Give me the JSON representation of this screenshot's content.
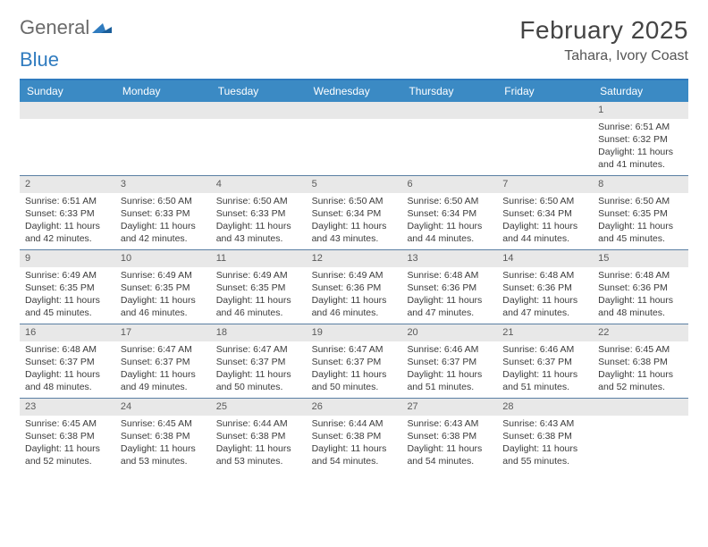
{
  "logo": {
    "word1": "General",
    "word2": "Blue"
  },
  "header": {
    "month_title": "February 2025",
    "location": "Tahara, Ivory Coast"
  },
  "calendar": {
    "columns": [
      "Sunday",
      "Monday",
      "Tuesday",
      "Wednesday",
      "Thursday",
      "Friday",
      "Saturday"
    ],
    "rows": [
      [
        {
          "empty": true
        },
        {
          "empty": true
        },
        {
          "empty": true
        },
        {
          "empty": true
        },
        {
          "empty": true
        },
        {
          "empty": true
        },
        {
          "day": "1",
          "sunrise": "Sunrise: 6:51 AM",
          "sunset": "Sunset: 6:32 PM",
          "daylight": "Daylight: 11 hours and 41 minutes."
        }
      ],
      [
        {
          "day": "2",
          "sunrise": "Sunrise: 6:51 AM",
          "sunset": "Sunset: 6:33 PM",
          "daylight": "Daylight: 11 hours and 42 minutes."
        },
        {
          "day": "3",
          "sunrise": "Sunrise: 6:50 AM",
          "sunset": "Sunset: 6:33 PM",
          "daylight": "Daylight: 11 hours and 42 minutes."
        },
        {
          "day": "4",
          "sunrise": "Sunrise: 6:50 AM",
          "sunset": "Sunset: 6:33 PM",
          "daylight": "Daylight: 11 hours and 43 minutes."
        },
        {
          "day": "5",
          "sunrise": "Sunrise: 6:50 AM",
          "sunset": "Sunset: 6:34 PM",
          "daylight": "Daylight: 11 hours and 43 minutes."
        },
        {
          "day": "6",
          "sunrise": "Sunrise: 6:50 AM",
          "sunset": "Sunset: 6:34 PM",
          "daylight": "Daylight: 11 hours and 44 minutes."
        },
        {
          "day": "7",
          "sunrise": "Sunrise: 6:50 AM",
          "sunset": "Sunset: 6:34 PM",
          "daylight": "Daylight: 11 hours and 44 minutes."
        },
        {
          "day": "8",
          "sunrise": "Sunrise: 6:50 AM",
          "sunset": "Sunset: 6:35 PM",
          "daylight": "Daylight: 11 hours and 45 minutes."
        }
      ],
      [
        {
          "day": "9",
          "sunrise": "Sunrise: 6:49 AM",
          "sunset": "Sunset: 6:35 PM",
          "daylight": "Daylight: 11 hours and 45 minutes."
        },
        {
          "day": "10",
          "sunrise": "Sunrise: 6:49 AM",
          "sunset": "Sunset: 6:35 PM",
          "daylight": "Daylight: 11 hours and 46 minutes."
        },
        {
          "day": "11",
          "sunrise": "Sunrise: 6:49 AM",
          "sunset": "Sunset: 6:35 PM",
          "daylight": "Daylight: 11 hours and 46 minutes."
        },
        {
          "day": "12",
          "sunrise": "Sunrise: 6:49 AM",
          "sunset": "Sunset: 6:36 PM",
          "daylight": "Daylight: 11 hours and 46 minutes."
        },
        {
          "day": "13",
          "sunrise": "Sunrise: 6:48 AM",
          "sunset": "Sunset: 6:36 PM",
          "daylight": "Daylight: 11 hours and 47 minutes."
        },
        {
          "day": "14",
          "sunrise": "Sunrise: 6:48 AM",
          "sunset": "Sunset: 6:36 PM",
          "daylight": "Daylight: 11 hours and 47 minutes."
        },
        {
          "day": "15",
          "sunrise": "Sunrise: 6:48 AM",
          "sunset": "Sunset: 6:36 PM",
          "daylight": "Daylight: 11 hours and 48 minutes."
        }
      ],
      [
        {
          "day": "16",
          "sunrise": "Sunrise: 6:48 AM",
          "sunset": "Sunset: 6:37 PM",
          "daylight": "Daylight: 11 hours and 48 minutes."
        },
        {
          "day": "17",
          "sunrise": "Sunrise: 6:47 AM",
          "sunset": "Sunset: 6:37 PM",
          "daylight": "Daylight: 11 hours and 49 minutes."
        },
        {
          "day": "18",
          "sunrise": "Sunrise: 6:47 AM",
          "sunset": "Sunset: 6:37 PM",
          "daylight": "Daylight: 11 hours and 50 minutes."
        },
        {
          "day": "19",
          "sunrise": "Sunrise: 6:47 AM",
          "sunset": "Sunset: 6:37 PM",
          "daylight": "Daylight: 11 hours and 50 minutes."
        },
        {
          "day": "20",
          "sunrise": "Sunrise: 6:46 AM",
          "sunset": "Sunset: 6:37 PM",
          "daylight": "Daylight: 11 hours and 51 minutes."
        },
        {
          "day": "21",
          "sunrise": "Sunrise: 6:46 AM",
          "sunset": "Sunset: 6:37 PM",
          "daylight": "Daylight: 11 hours and 51 minutes."
        },
        {
          "day": "22",
          "sunrise": "Sunrise: 6:45 AM",
          "sunset": "Sunset: 6:38 PM",
          "daylight": "Daylight: 11 hours and 52 minutes."
        }
      ],
      [
        {
          "day": "23",
          "sunrise": "Sunrise: 6:45 AM",
          "sunset": "Sunset: 6:38 PM",
          "daylight": "Daylight: 11 hours and 52 minutes."
        },
        {
          "day": "24",
          "sunrise": "Sunrise: 6:45 AM",
          "sunset": "Sunset: 6:38 PM",
          "daylight": "Daylight: 11 hours and 53 minutes."
        },
        {
          "day": "25",
          "sunrise": "Sunrise: 6:44 AM",
          "sunset": "Sunset: 6:38 PM",
          "daylight": "Daylight: 11 hours and 53 minutes."
        },
        {
          "day": "26",
          "sunrise": "Sunrise: 6:44 AM",
          "sunset": "Sunset: 6:38 PM",
          "daylight": "Daylight: 11 hours and 54 minutes."
        },
        {
          "day": "27",
          "sunrise": "Sunrise: 6:43 AM",
          "sunset": "Sunset: 6:38 PM",
          "daylight": "Daylight: 11 hours and 54 minutes."
        },
        {
          "day": "28",
          "sunrise": "Sunrise: 6:43 AM",
          "sunset": "Sunset: 6:38 PM",
          "daylight": "Daylight: 11 hours and 55 minutes."
        },
        {
          "empty": true
        }
      ]
    ]
  },
  "colors": {
    "header_bg": "#3b8ac4",
    "row_border": "#5a7fa3",
    "daynum_bg": "#e8e8e8"
  }
}
